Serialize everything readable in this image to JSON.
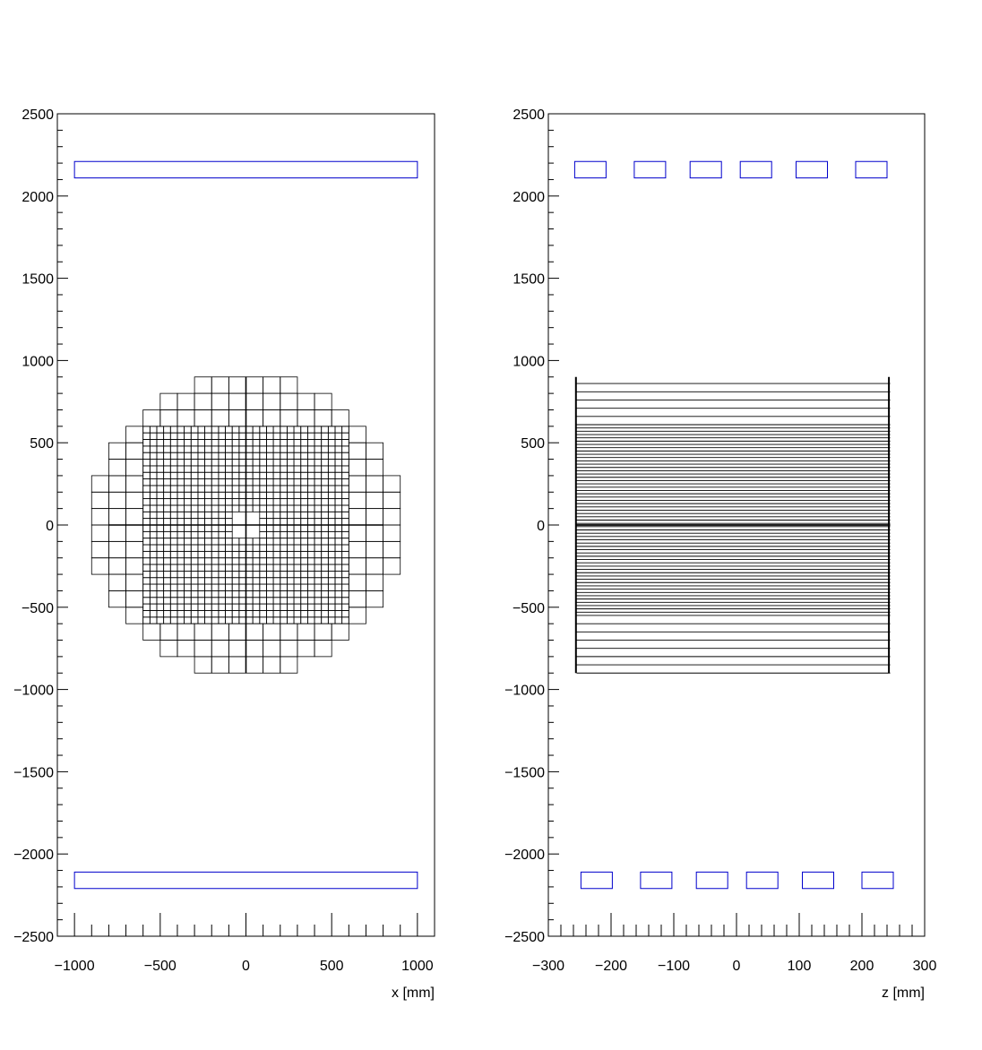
{
  "chart_data": [
    {
      "type": "scatter",
      "title": "",
      "xlabel": "x [mm]",
      "ylabel": "",
      "xlim": [
        -1100,
        1100
      ],
      "ylim": [
        -2500,
        2500
      ],
      "xticks": [
        -1000,
        -500,
        0,
        500,
        1000
      ],
      "xtick_labels": [
        "−1000",
        "−500",
        "0",
        "500",
        "1000"
      ],
      "yticks": [
        -2500,
        -2000,
        -1500,
        -1000,
        -500,
        0,
        500,
        1000,
        1500,
        2000,
        2500
      ],
      "ytick_labels": [
        "−2500",
        "−2000",
        "−1500",
        "−1000",
        "−500",
        "0",
        "500",
        "1000",
        "1500",
        "2000",
        "2500"
      ],
      "grid": false,
      "legend": "none",
      "colors": {
        "frame": "#000000",
        "cells": "#000000",
        "boxes": "#0000cc"
      },
      "calorimeter": {
        "outer_radius": 900,
        "fine_half_width": 600,
        "fine_cell": 40,
        "coarse_cell": 100,
        "hole_half_width": 100
      },
      "boxes": [
        {
          "x0": -1000,
          "x1": 1000,
          "y0": 2110,
          "y1": 2210
        },
        {
          "x0": -1000,
          "x1": 1000,
          "y0": -2210,
          "y1": -2110
        }
      ]
    },
    {
      "type": "scatter",
      "title": "",
      "xlabel": "z [mm]",
      "ylabel": "",
      "xlim": [
        -300,
        300
      ],
      "ylim": [
        -2500,
        2500
      ],
      "xticks": [
        -300,
        -200,
        -100,
        0,
        100,
        200,
        300
      ],
      "xtick_labels": [
        "−300",
        "−200",
        "−100",
        "0",
        "100",
        "200",
        "300"
      ],
      "yticks": [
        -2500,
        -2000,
        -1500,
        -1000,
        -500,
        0,
        500,
        1000,
        1500,
        2000,
        2500
      ],
      "ytick_labels": [
        "−2500",
        "−2000",
        "−1500",
        "−1000",
        "−500",
        "0",
        "500",
        "1000",
        "1500",
        "2000",
        "2500"
      ],
      "grid": false,
      "legend": "none",
      "colors": {
        "frame": "#000000",
        "cells": "#000000",
        "boxes": "#0000cc"
      },
      "side_view": {
        "z_min": -258,
        "z_max": 243,
        "y_min": -900,
        "y_max": 900,
        "inner_pitch": 40,
        "outer_pitch": 100,
        "inner_limit": 600
      },
      "boxes": [
        {
          "x0": -258,
          "x1": -208,
          "y0": 2110,
          "y1": 2210
        },
        {
          "x0": -163,
          "x1": -113,
          "y0": 2110,
          "y1": 2210
        },
        {
          "x0": -74,
          "x1": -24,
          "y0": 2110,
          "y1": 2210
        },
        {
          "x0": 6,
          "x1": 56,
          "y0": 2110,
          "y1": 2210
        },
        {
          "x0": 95,
          "x1": 145,
          "y0": 2110,
          "y1": 2210
        },
        {
          "x0": 190,
          "x1": 240,
          "y0": 2110,
          "y1": 2210
        },
        {
          "x0": -248,
          "x1": -198,
          "y0": -2210,
          "y1": -2110
        },
        {
          "x0": -153,
          "x1": -103,
          "y0": -2210,
          "y1": -2110
        },
        {
          "x0": -64,
          "x1": -14,
          "y0": -2210,
          "y1": -2110
        },
        {
          "x0": 16,
          "x1": 66,
          "y0": -2210,
          "y1": -2110
        },
        {
          "x0": 105,
          "x1": 155,
          "y0": -2210,
          "y1": -2110
        },
        {
          "x0": 200,
          "x1": 250,
          "y0": -2210,
          "y1": -2110
        }
      ]
    }
  ]
}
